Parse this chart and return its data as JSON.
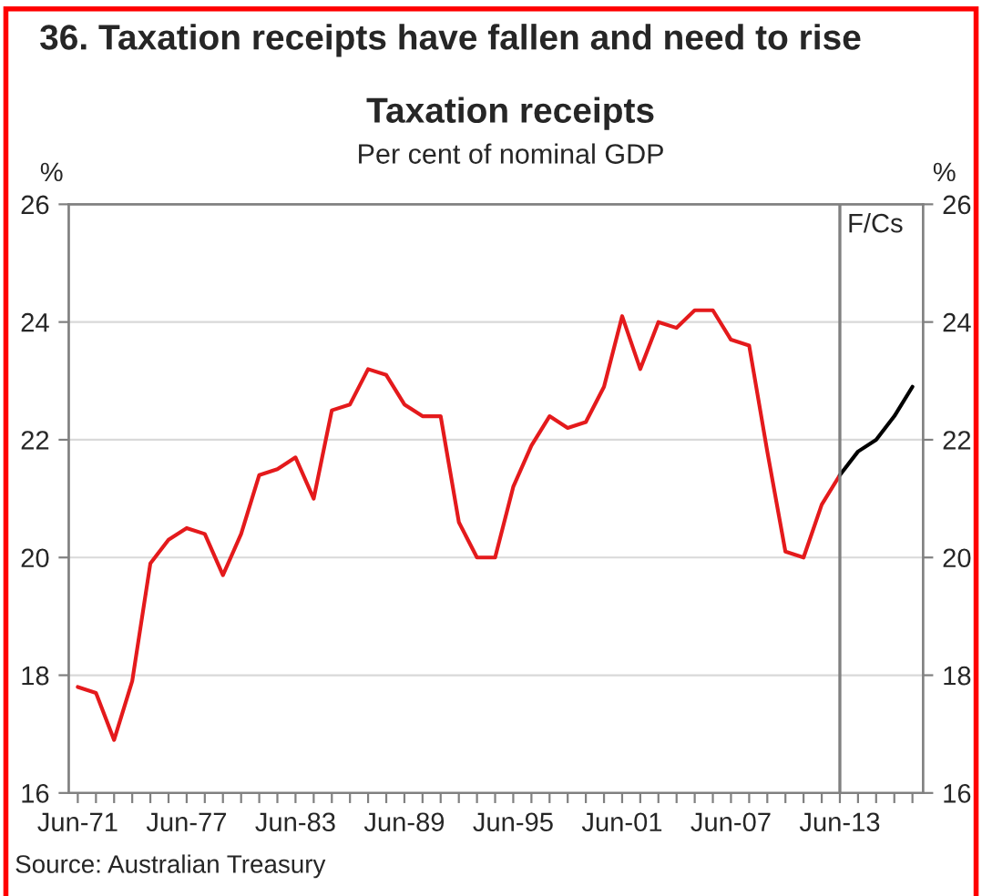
{
  "chart_data": {
    "type": "line",
    "title": "Taxation receipts",
    "subtitle": "Per cent of nominal GDP",
    "ylabel": "%",
    "y2label": "%",
    "annotations": [
      "36. Taxation receipts have fallen and need to rise",
      "Source: Australian Treasury"
    ],
    "series": [
      {
        "color": "#e41a1c",
        "x": [
          "1971-06",
          "1972-06",
          "1973-06",
          "1974-06",
          "1975-06",
          "1976-06",
          "1977-06",
          "1978-06",
          "1979-06",
          "1980-06",
          "1981-06",
          "1982-06",
          "1983-06",
          "1984-06",
          "1985-06",
          "1986-06",
          "1987-06",
          "1988-06",
          "1989-06",
          "1990-06",
          "1991-06",
          "1992-06",
          "1993-06",
          "1994-06",
          "1995-06",
          "1996-06",
          "1997-06",
          "1998-06",
          "1999-06",
          "2000-06",
          "2001-06",
          "2002-06",
          "2003-06",
          "2004-06",
          "2005-06",
          "2006-06",
          "2007-06",
          "2008-06",
          "2009-06",
          "2010-06",
          "2011-06",
          "2012-06",
          "2013-06"
        ],
        "values": [
          17.8,
          17.7,
          16.9,
          17.9,
          19.9,
          20.3,
          20.5,
          20.4,
          19.7,
          20.4,
          21.4,
          21.5,
          21.7,
          21.0,
          22.5,
          22.6,
          23.2,
          23.1,
          22.6,
          22.4,
          22.4,
          20.6,
          20.0,
          20.0,
          21.2,
          21.9,
          22.4,
          22.2,
          22.3,
          22.9,
          24.1,
          23.2,
          24.0,
          23.9,
          24.2,
          24.2,
          23.7,
          23.6,
          21.8,
          20.1,
          20.0,
          20.9,
          21.4
        ]
      },
      {
        "color": "#000000",
        "x": [
          "2013-06",
          "2014-06",
          "2015-06",
          "2016-06",
          "2017-06"
        ],
        "values": [
          21.4,
          21.8,
          22.0,
          22.4,
          22.9
        ]
      }
    ],
    "xlim": [
      "1970-12",
      "2018-01"
    ],
    "xticks": [
      {
        "value": "1971-06",
        "label": "Jun-71"
      },
      {
        "value": "1972-06",
        "label": null
      },
      {
        "value": "1973-06",
        "label": null
      },
      {
        "value": "1974-06",
        "label": null
      },
      {
        "value": "1975-06",
        "label": null
      },
      {
        "value": "1976-06",
        "label": null
      },
      {
        "value": "1977-06",
        "label": "Jun-77"
      },
      {
        "value": "1978-06",
        "label": null
      },
      {
        "value": "1979-06",
        "label": null
      },
      {
        "value": "1980-06",
        "label": null
      },
      {
        "value": "1981-06",
        "label": null
      },
      {
        "value": "1982-06",
        "label": null
      },
      {
        "value": "1983-06",
        "label": "Jun-83"
      },
      {
        "value": "1984-06",
        "label": null
      },
      {
        "value": "1985-06",
        "label": null
      },
      {
        "value": "1986-06",
        "label": null
      },
      {
        "value": "1987-06",
        "label": null
      },
      {
        "value": "1988-06",
        "label": null
      },
      {
        "value": "1989-06",
        "label": "Jun-89"
      },
      {
        "value": "1990-06",
        "label": null
      },
      {
        "value": "1991-06",
        "label": null
      },
      {
        "value": "1992-06",
        "label": null
      },
      {
        "value": "1993-06",
        "label": null
      },
      {
        "value": "1994-06",
        "label": null
      },
      {
        "value": "1995-06",
        "label": "Jun-95"
      },
      {
        "value": "1996-06",
        "label": null
      },
      {
        "value": "1997-06",
        "label": null
      },
      {
        "value": "1998-06",
        "label": null
      },
      {
        "value": "1999-06",
        "label": null
      },
      {
        "value": "2000-06",
        "label": null
      },
      {
        "value": "2001-06",
        "label": "Jun-01"
      },
      {
        "value": "2002-06",
        "label": null
      },
      {
        "value": "2003-06",
        "label": null
      },
      {
        "value": "2004-06",
        "label": null
      },
      {
        "value": "2005-06",
        "label": null
      },
      {
        "value": "2006-06",
        "label": null
      },
      {
        "value": "2007-06",
        "label": "Jun-07"
      },
      {
        "value": "2008-06",
        "label": null
      },
      {
        "value": "2009-06",
        "label": null
      },
      {
        "value": "2010-06",
        "label": null
      },
      {
        "value": "2011-06",
        "label": null
      },
      {
        "value": "2012-06",
        "label": null
      },
      {
        "value": "2013-06",
        "label": "Jun-13"
      },
      {
        "value": "2014-06",
        "label": null
      },
      {
        "value": "2015-06",
        "label": null
      },
      {
        "value": "2016-06",
        "label": null
      },
      {
        "value": "2017-06",
        "label": null
      }
    ],
    "ylim": [
      16,
      26
    ],
    "yticks": [
      16,
      18,
      20,
      22,
      24,
      26
    ],
    "y2lim": [
      16,
      26
    ],
    "y2ticks": [
      16,
      18,
      20,
      22,
      24,
      26
    ],
    "ref_lines": [
      {
        "axis": "x",
        "value": "2013-06",
        "label": "F/Cs",
        "color": "#808080"
      }
    ],
    "grid": "y",
    "legend": false,
    "marker": "none",
    "line_style": "solid"
  }
}
